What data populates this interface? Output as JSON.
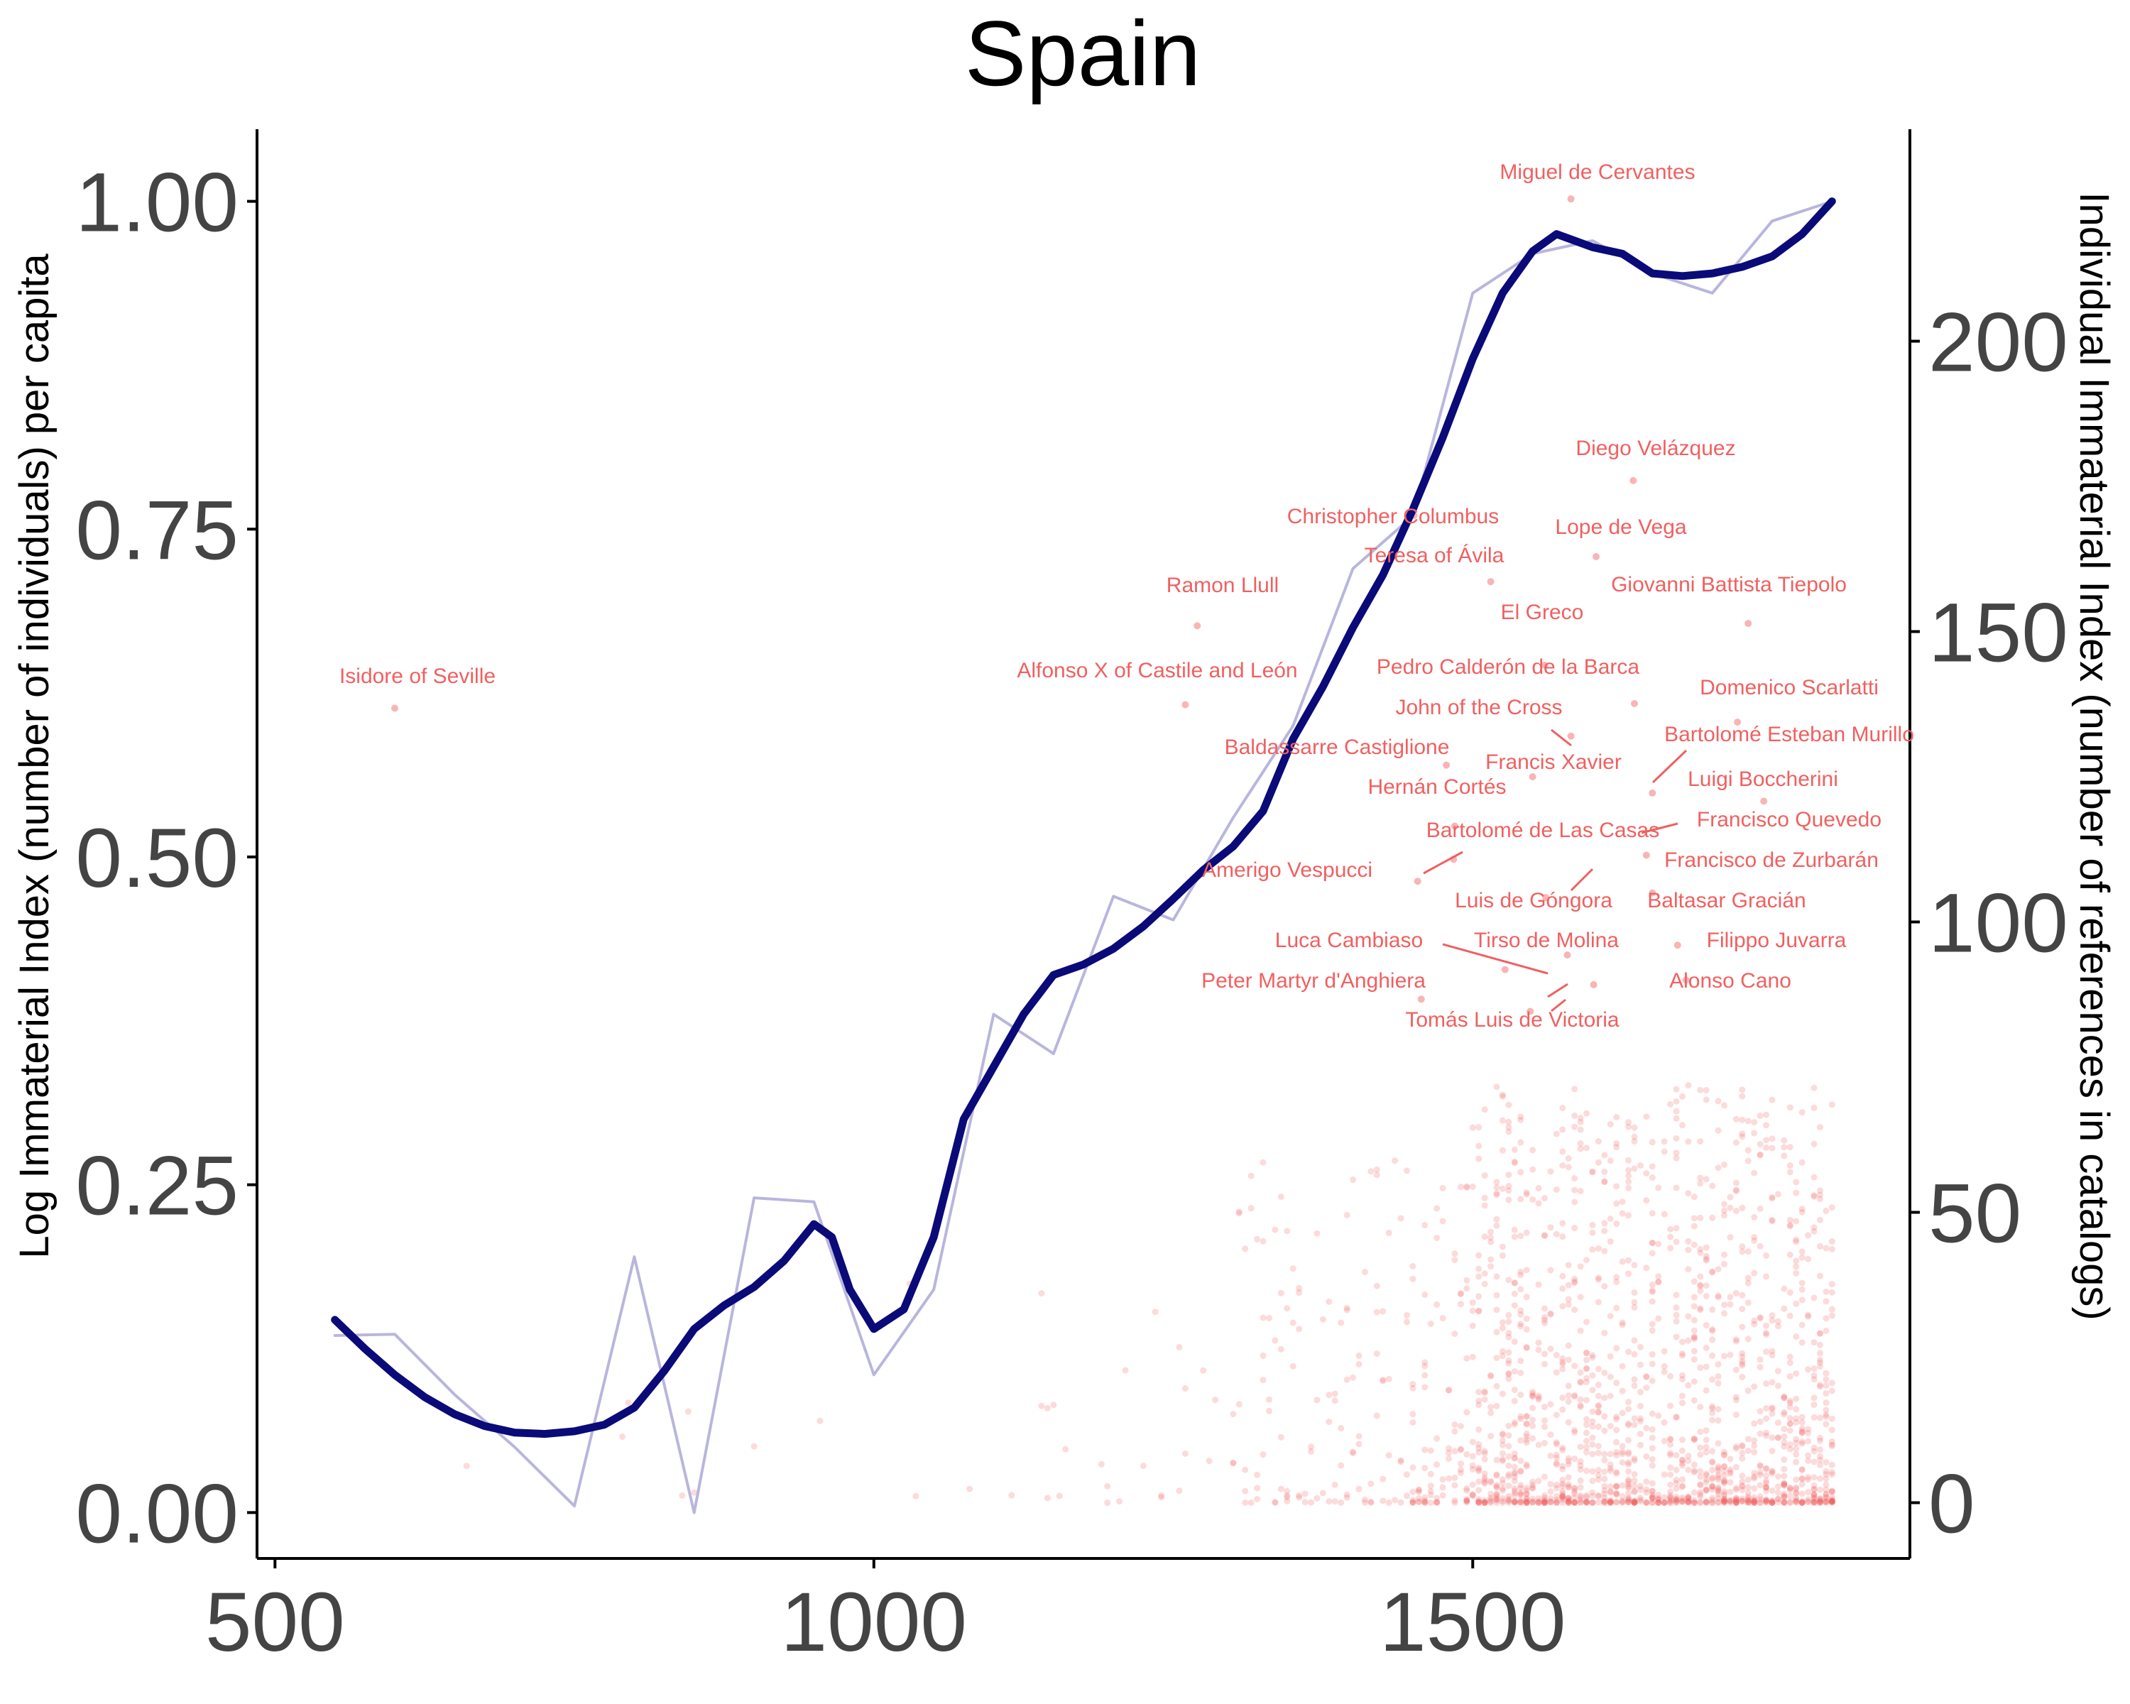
{
  "chart_data": {
    "type": "line",
    "title": "Spain",
    "ylabel": "Log Immaterial Index (number of individuals) per capita",
    "y2label": "Individual Immaterial Index (number of references in catalogs)",
    "xlabel": "",
    "xlim": [
      485,
      1865
    ],
    "ylim": [
      -0.035,
      1.055
    ],
    "y2lim": [
      -9.6,
      236.5
    ],
    "x_ticks": [
      500,
      1000,
      1500
    ],
    "y_ticks": [
      0.0,
      0.25,
      0.5,
      0.75,
      1.0
    ],
    "y2_ticks": [
      0,
      50,
      100,
      150,
      200
    ],
    "grid": false,
    "colors": {
      "raw_line": "#b8b6dc",
      "smooth_line": "#0a0a78",
      "points": "#f05a5a",
      "labels": "#f06060",
      "axis": "#000000",
      "tick_text": "#444444"
    },
    "series": [
      {
        "name": "",
        "style": "raw",
        "x": [
          550,
          600,
          650,
          700,
          750,
          800,
          850,
          900,
          950,
          1000,
          1050,
          1100,
          1150,
          1200,
          1250,
          1300,
          1350,
          1400,
          1450,
          1500,
          1550,
          1600,
          1650,
          1700,
          1750,
          1800
        ],
        "y": [
          0.135,
          0.136,
          0.09,
          0.05,
          0.005,
          0.195,
          0.0,
          0.24,
          0.237,
          0.105,
          0.17,
          0.38,
          0.35,
          0.47,
          0.452,
          0.53,
          0.6,
          0.72,
          0.76,
          0.93,
          0.96,
          0.97,
          0.945,
          0.93,
          0.985,
          1.0
        ]
      },
      {
        "name": "",
        "style": "smooth",
        "x": [
          550,
          575,
          600,
          625,
          650,
          675,
          700,
          725,
          750,
          775,
          800,
          825,
          850,
          875,
          900,
          925,
          950,
          965,
          980,
          1000,
          1025,
          1050,
          1075,
          1100,
          1125,
          1150,
          1175,
          1200,
          1225,
          1250,
          1275,
          1300,
          1325,
          1350,
          1375,
          1400,
          1425,
          1450,
          1475,
          1500,
          1525,
          1550,
          1570,
          1600,
          1625,
          1650,
          1675,
          1700,
          1725,
          1750,
          1775,
          1800
        ],
        "y": [
          0.147,
          0.125,
          0.105,
          0.088,
          0.075,
          0.066,
          0.061,
          0.06,
          0.062,
          0.067,
          0.08,
          0.108,
          0.14,
          0.158,
          0.172,
          0.192,
          0.22,
          0.21,
          0.17,
          0.14,
          0.155,
          0.21,
          0.3,
          0.34,
          0.38,
          0.41,
          0.418,
          0.43,
          0.447,
          0.468,
          0.49,
          0.508,
          0.535,
          0.59,
          0.63,
          0.675,
          0.715,
          0.765,
          0.82,
          0.88,
          0.93,
          0.962,
          0.975,
          0.965,
          0.96,
          0.945,
          0.943,
          0.945,
          0.95,
          0.958,
          0.975,
          1.0
        ]
      }
    ],
    "annotations": [
      {
        "label": "Miguel de Cervantes",
        "x": 1582,
        "y": 224.5
      },
      {
        "label": "Diego Velázquez",
        "x": 1634,
        "y": 176.0
      },
      {
        "label": "Christopher Columbus",
        "x": 1451,
        "y": 170.0
      },
      {
        "label": "Lope de Vega",
        "x": 1603,
        "y": 162.9
      },
      {
        "label": "Teresa of Ávila",
        "x": 1515,
        "y": 158.6
      },
      {
        "label": "Ramon Llull",
        "x": 1270,
        "y": 151.0
      },
      {
        "label": "Giovanni Battista Tiepolo",
        "x": 1730,
        "y": 151.4
      },
      {
        "label": "El Greco",
        "x": 1560,
        "y": 144.2
      },
      {
        "label": "Isidore of Seville",
        "x": 600,
        "y": 136.8
      },
      {
        "label": "Alfonso X of Castile and León",
        "x": 1260,
        "y": 137.4
      },
      {
        "label": "Pedro Calderón de la Barca",
        "x": 1635,
        "y": 137.6
      },
      {
        "label": "Domenico Scarlatti",
        "x": 1721,
        "y": 134.4
      },
      {
        "label": "John of the Cross",
        "x": 1582,
        "y": 132.0
      },
      {
        "label": "Baldassarre Castiglione",
        "x": 1478,
        "y": 127.0
      },
      {
        "label": "Bartolomé Esteban Murillo",
        "x": 1650,
        "y": 122.2
      },
      {
        "label": "Francis Xavier",
        "x": 1550,
        "y": 125.0
      },
      {
        "label": "Luigi Boccherini",
        "x": 1743,
        "y": 120.8
      },
      {
        "label": "Hernán Cortés",
        "x": 1485,
        "y": 116.5
      },
      {
        "label": "Francisco Quevedo",
        "x": 1645,
        "y": 111.5
      },
      {
        "label": "Bartolomé de Las Casas",
        "x": 1484,
        "y": 110.8
      },
      {
        "label": "Francisco de Zurbarán",
        "x": 1650,
        "y": 105.0
      },
      {
        "label": "Amerigo Vespucci",
        "x": 1454,
        "y": 107.0
      },
      {
        "label": "Luis de Góngora",
        "x": 1561,
        "y": 104.2
      },
      {
        "label": "Baltasar Gracián",
        "x": 1671,
        "y": 96.0
      },
      {
        "label": "Luca Cambiaso",
        "x": 1527,
        "y": 91.8
      },
      {
        "label": "Tirso de Molina",
        "x": 1579,
        "y": 94.3
      },
      {
        "label": "Filippo Juvarra",
        "x": 1678,
        "y": 90.0
      },
      {
        "label": "Alonso Cano",
        "x": 1601,
        "y": 89.2
      },
      {
        "label": "Peter Martyr d'Anghiera",
        "x": 1457,
        "y": 86.7
      },
      {
        "label": "Tomás Luis de Victoria",
        "x": 1548,
        "y": 84.6
      }
    ]
  }
}
